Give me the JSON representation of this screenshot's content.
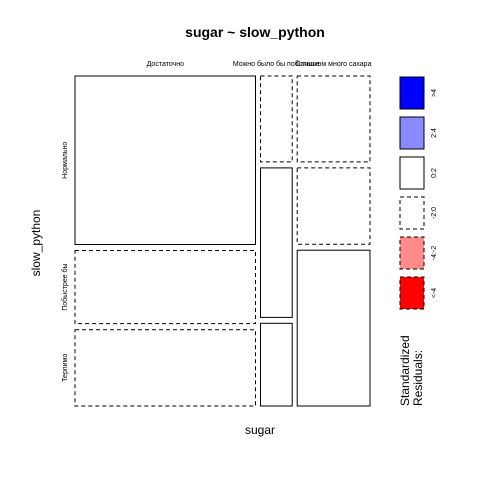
{
  "chart_data": {
    "type": "mosaic",
    "title": "sugar ~ slow_python",
    "xlabel": "sugar",
    "ylabel": "slow_python",
    "x_categories": [
      "Достаточно",
      "Можно было бы побольше",
      "Слишком много сахара"
    ],
    "y_categories": [
      "Нормально",
      "Побыстрее бы",
      "Терпимо"
    ],
    "column_proportions": [
      0.57,
      0.1,
      0.23
    ],
    "cells": [
      {
        "x": "Достаточно",
        "y": "Нормально",
        "proportion": 0.53,
        "residual_band": "0:2",
        "line": "solid"
      },
      {
        "x": "Достаточно",
        "y": "Побыстрее бы",
        "proportion": 0.23,
        "residual_band": "-2:0",
        "line": "dashed"
      },
      {
        "x": "Достаточно",
        "y": "Терпимо",
        "proportion": 0.24,
        "residual_band": "-2:0",
        "line": "dashed"
      },
      {
        "x": "Можно было бы побольше",
        "y": "Нормально",
        "proportion": 0.27,
        "residual_band": "-2:0",
        "line": "dashed"
      },
      {
        "x": "Можно было бы побольше",
        "y": "Побыстрее бы",
        "proportion": 0.47,
        "residual_band": "0:2",
        "line": "solid"
      },
      {
        "x": "Можно было бы побольше",
        "y": "Терпимо",
        "proportion": 0.26,
        "residual_band": "0:2",
        "line": "solid"
      },
      {
        "x": "Слишком много сахара",
        "y": "Нормально",
        "proportion": 0.27,
        "residual_band": "-2:0",
        "line": "dashed"
      },
      {
        "x": "Слишком много сахара",
        "y": "Побыстрее бы",
        "proportion": 0.24,
        "residual_band": "-2:0",
        "line": "dashed"
      },
      {
        "x": "Слишком много сахара",
        "y": "Терпимо",
        "proportion": 0.49,
        "residual_band": "0:2",
        "line": "solid"
      }
    ],
    "legend": {
      "title_line1": "Standardized",
      "title_line2": "Residuals:",
      "placement": "right",
      "items": [
        {
          "label": ">4",
          "color": "#0000ff",
          "line": "solid"
        },
        {
          "label": "2:4",
          "color": "#8a8aff",
          "line": "solid"
        },
        {
          "label": "0:2",
          "color": "#ffffff",
          "line": "solid"
        },
        {
          "label": "-2:0",
          "color": "#ffffff",
          "line": "dashed"
        },
        {
          "label": "-4:-2",
          "color": "#ff8a8a",
          "line": "dashed"
        },
        {
          "label": "<-4",
          "color": "#ff0000",
          "line": "dashed"
        }
      ]
    }
  }
}
